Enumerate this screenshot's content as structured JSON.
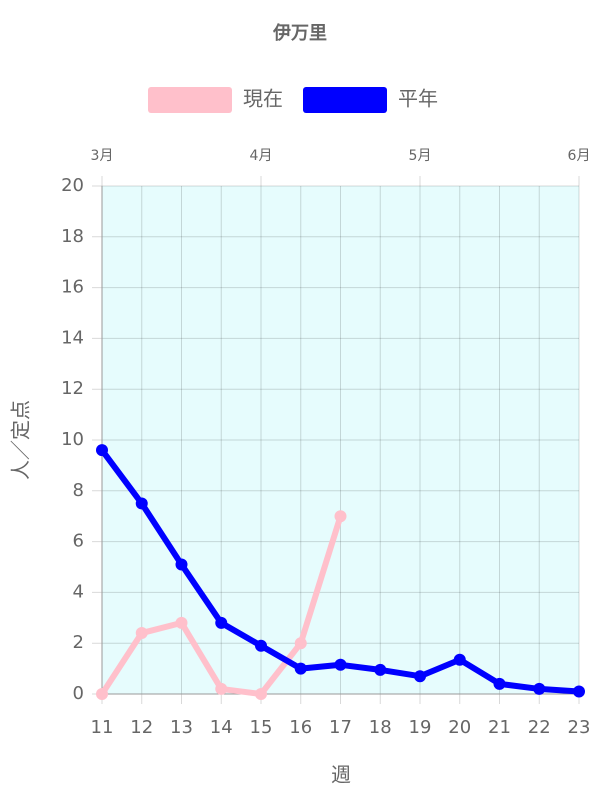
{
  "chart_data": {
    "type": "line",
    "title": "伊万里",
    "x_label": "週",
    "y_label": "人／定点",
    "x": [
      11,
      12,
      13,
      14,
      15,
      16,
      17,
      18,
      19,
      20,
      21,
      22,
      23
    ],
    "series": [
      {
        "name": "現在",
        "color": "#ffc0cb",
        "values": [
          0,
          2.4,
          2.8,
          0.2,
          0,
          2,
          7,
          null,
          null,
          null,
          null,
          null,
          null
        ]
      },
      {
        "name": "平年",
        "color": "#0000ff",
        "values": [
          9.6,
          7.5,
          5.1,
          2.8,
          1.9,
          1.0,
          1.15,
          0.95,
          0.7,
          1.35,
          0.4,
          0.2,
          0.1
        ]
      }
    ],
    "xlim": [
      11,
      23
    ],
    "xticks": [
      11,
      12,
      13,
      14,
      15,
      16,
      17,
      18,
      19,
      20,
      21,
      22,
      23
    ],
    "top_ticks": [
      {
        "value": 11,
        "label": "3月"
      },
      {
        "value": 15,
        "label": "4月"
      },
      {
        "value": 19,
        "label": "5月"
      },
      {
        "value": 23,
        "label": "6月"
      }
    ],
    "ylim": [
      0,
      20
    ],
    "yticks": [
      0,
      2,
      4,
      6,
      8,
      10,
      12,
      14,
      16,
      18,
      20
    ],
    "grid": true,
    "background": "#e6fcfd",
    "legend": "top"
  }
}
